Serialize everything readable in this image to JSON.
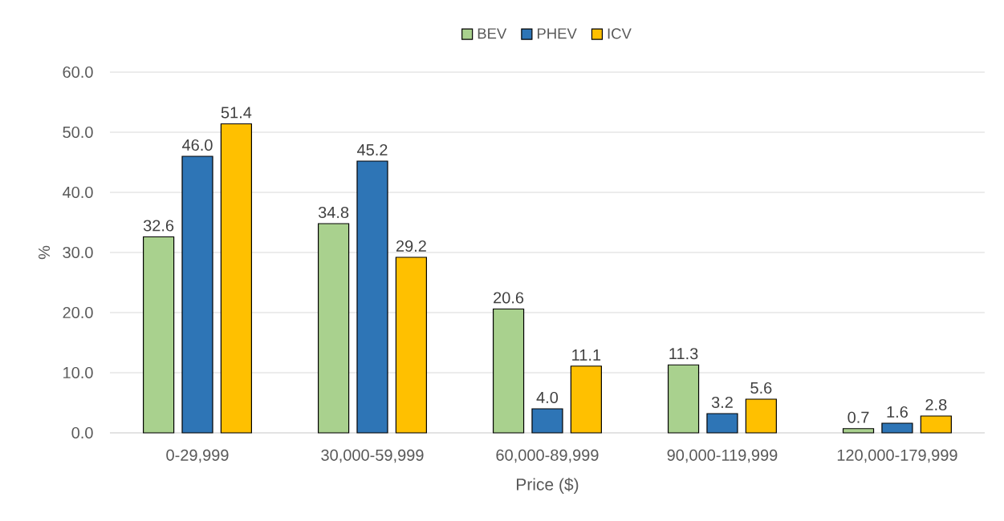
{
  "chart_data": {
    "type": "bar",
    "categories": [
      "0-29,999",
      "30,000-59,999",
      "60,000-89,999",
      "90,000-119,999",
      "120,000-179,999"
    ],
    "series": [
      {
        "name": "BEV",
        "color": "#a9d18e",
        "values": [
          32.6,
          34.8,
          20.6,
          11.3,
          0.7
        ],
        "value_labels": [
          "32.6",
          "34.8",
          "20.6",
          "11.3",
          "0.7"
        ]
      },
      {
        "name": "PHEV",
        "color": "#2e75b6",
        "values": [
          46.0,
          45.2,
          4.0,
          3.2,
          1.6
        ],
        "value_labels": [
          "46.0",
          "45.2",
          "4.0",
          "3.2",
          "1.6"
        ]
      },
      {
        "name": "ICV",
        "color": "#ffc000",
        "values": [
          51.4,
          29.2,
          11.1,
          5.6,
          2.8
        ],
        "value_labels": [
          "51.4",
          "29.2",
          "11.1",
          "5.6",
          "2.8"
        ]
      }
    ],
    "xlabel": "Price ($)",
    "ylabel": "%",
    "ylim": [
      0,
      60
    ],
    "yticks": [
      {
        "value": 0,
        "label": "0.0"
      },
      {
        "value": 10,
        "label": "10.0"
      },
      {
        "value": 20,
        "label": "20.0"
      },
      {
        "value": 30,
        "label": "30.0"
      },
      {
        "value": 40,
        "label": "40.0"
      },
      {
        "value": 50,
        "label": "50.0"
      },
      {
        "value": 60,
        "label": "60.0"
      }
    ],
    "grid": "y",
    "legend": "top"
  }
}
